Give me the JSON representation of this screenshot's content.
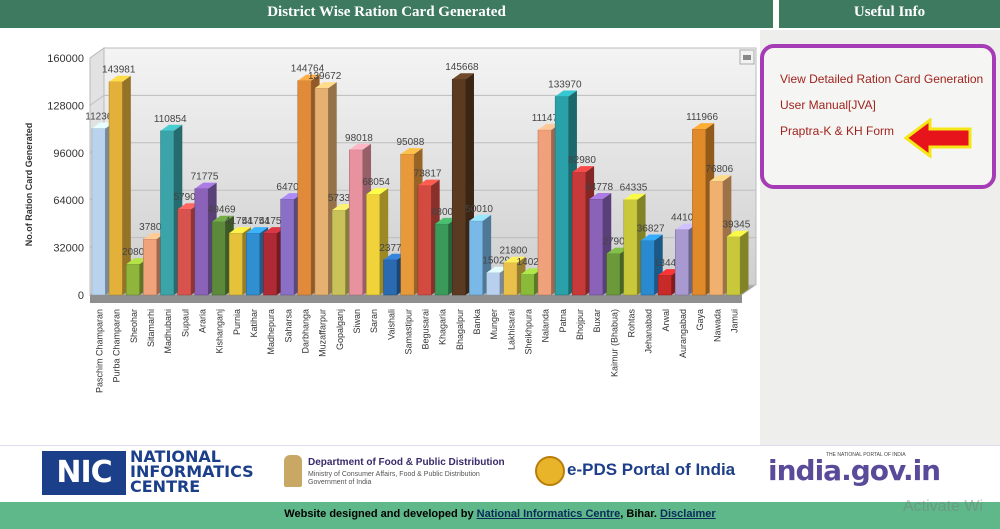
{
  "header": {
    "title": "District Wise Ration Card Generated",
    "useful_title": "Useful Info"
  },
  "useful_links": [
    {
      "label": "View Detailed Ration Card Generation"
    },
    {
      "label": "User Manual[JVA]"
    },
    {
      "label": "Praptra-K & KH Form"
    }
  ],
  "chart_data": {
    "type": "bar",
    "title": "",
    "xlabel": "",
    "ylabel": "No.of Ration Card Generated",
    "ylim": [
      0,
      160000
    ],
    "yticks": [
      0,
      32000,
      64000,
      96000,
      128000,
      160000
    ],
    "grid": true,
    "categories": [
      "Paschim Champaran",
      "Purba Champaran",
      "Sheohar",
      "Sitamarhi",
      "Madhubani",
      "Supaul",
      "Araria",
      "Kishanganj",
      "Purnia",
      "Katihar",
      "Madhepura",
      "Saharsa",
      "Darbhanga",
      "Muzaffarpur",
      "Gopalganj",
      "Siwan",
      "Saran",
      "Vaishali",
      "Samastipur",
      "Begusarai",
      "Khagaria",
      "Bhagalpur",
      "Banka",
      "Munger",
      "Lakhisarai",
      "Sheikhpura",
      "Nalanda",
      "Patna",
      "Bhojpur",
      "Buxar",
      "Kaimur (Bhabua)",
      "Rohtas",
      "Jehanabad",
      "Arwal",
      "Aurangabad",
      "Gaya",
      "Nawada",
      "Jamui"
    ],
    "values": [
      112368,
      143981,
      20808,
      37800,
      110854,
      57903,
      71775,
      49469,
      41754,
      41754,
      41754,
      64702,
      144764,
      139672,
      57330,
      98018,
      68054,
      23774,
      95088,
      73817,
      48000,
      145668,
      50010,
      15029,
      21800,
      14022,
      111477,
      133970,
      82980,
      64778,
      27900,
      64335,
      36827,
      13441,
      44100,
      111966,
      76806,
      39345
    ],
    "labels": [
      "112368",
      "143981",
      "20808",
      "37800",
      "110854",
      "57903",
      "71775",
      "49469",
      "41754",
      "41754",
      "41754",
      "64702",
      "144764",
      "139672",
      "57330",
      "98018",
      "68054",
      "23774",
      "95088",
      "73817",
      "48000",
      "145668",
      "50010",
      "15029",
      "21800",
      "14022",
      "111477",
      "133970",
      "82980",
      "64778",
      "27900",
      "64335",
      "36827",
      "13441",
      "44100",
      "111966",
      "76806",
      "39345"
    ],
    "colors": [
      "#b9d3ee",
      "#e3b13a",
      "#8fb53a",
      "#f0a27a",
      "#3aa4a8",
      "#d8524e",
      "#8a62b8",
      "#5d8a3a",
      "#e6c23a",
      "#2f8fd0",
      "#b02a36",
      "#8a6fc6",
      "#e08a3a",
      "#e6b070",
      "#c9c25a",
      "#e892a0",
      "#f0d23a",
      "#2a6ab0",
      "#e89a3a",
      "#d24a40",
      "#3a9a5a",
      "#5a3a20",
      "#7ab8e8",
      "#b8d0ee",
      "#e8c04a",
      "#8aba3a",
      "#f0a07a",
      "#2aa0a8",
      "#c83a3a",
      "#8a62b8",
      "#6a9a3a",
      "#c8c83a",
      "#2a8ad0",
      "#c82a2a",
      "#a89ad0",
      "#e08a2a",
      "#f0b070",
      "#c8c83a"
    ]
  },
  "footer": {
    "nic_short": "NIC",
    "nic_line1": "NATIONAL",
    "nic_line2": "INFORMATICS",
    "nic_line3": "CENTRE",
    "dept_title": "Department of Food & Public Distribution",
    "dept_sub1": "Ministry of Consumer Affairs, Food & Public Distribution",
    "dept_sub2": "Government of India",
    "epds": "e-PDS Portal of India",
    "india_small": "THE NATIONAL PORTAL OF INDIA",
    "india_gov": "india.gov.in",
    "credit_prefix": "Website designed and developed by",
    "credit_link": "National Informatics Centre",
    "credit_suffix": ", Bihar.",
    "disclaimer": "Disclaimer"
  },
  "watermark": "Activate Wi"
}
